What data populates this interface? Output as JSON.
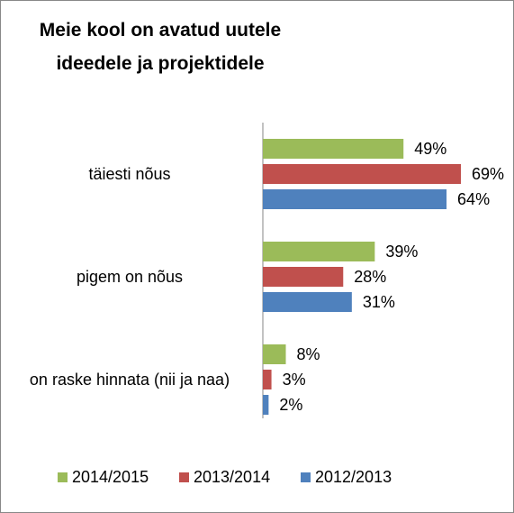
{
  "chart_data": {
    "type": "bar",
    "orientation": "horizontal",
    "title": "Meie kool on avatud uutele ideedele ja projektidele",
    "categories": [
      "täiesti nõus",
      "pigem on nõus",
      "on raske hinnata (nii ja naa)"
    ],
    "series": [
      {
        "name": "2014/2015",
        "color": "#9bbb59",
        "values": [
          49,
          39,
          8
        ],
        "value_labels": [
          "49%",
          "39%",
          "8%"
        ]
      },
      {
        "name": "2013/2014",
        "color": "#c0504d",
        "values": [
          69,
          28,
          3
        ],
        "value_labels": [
          "69%",
          "28%",
          "3%"
        ]
      },
      {
        "name": "2012/2013",
        "color": "#4f81bd",
        "values": [
          64,
          31,
          2
        ],
        "value_labels": [
          "64%",
          "31%",
          "2%"
        ]
      }
    ],
    "legend": "bottom"
  }
}
